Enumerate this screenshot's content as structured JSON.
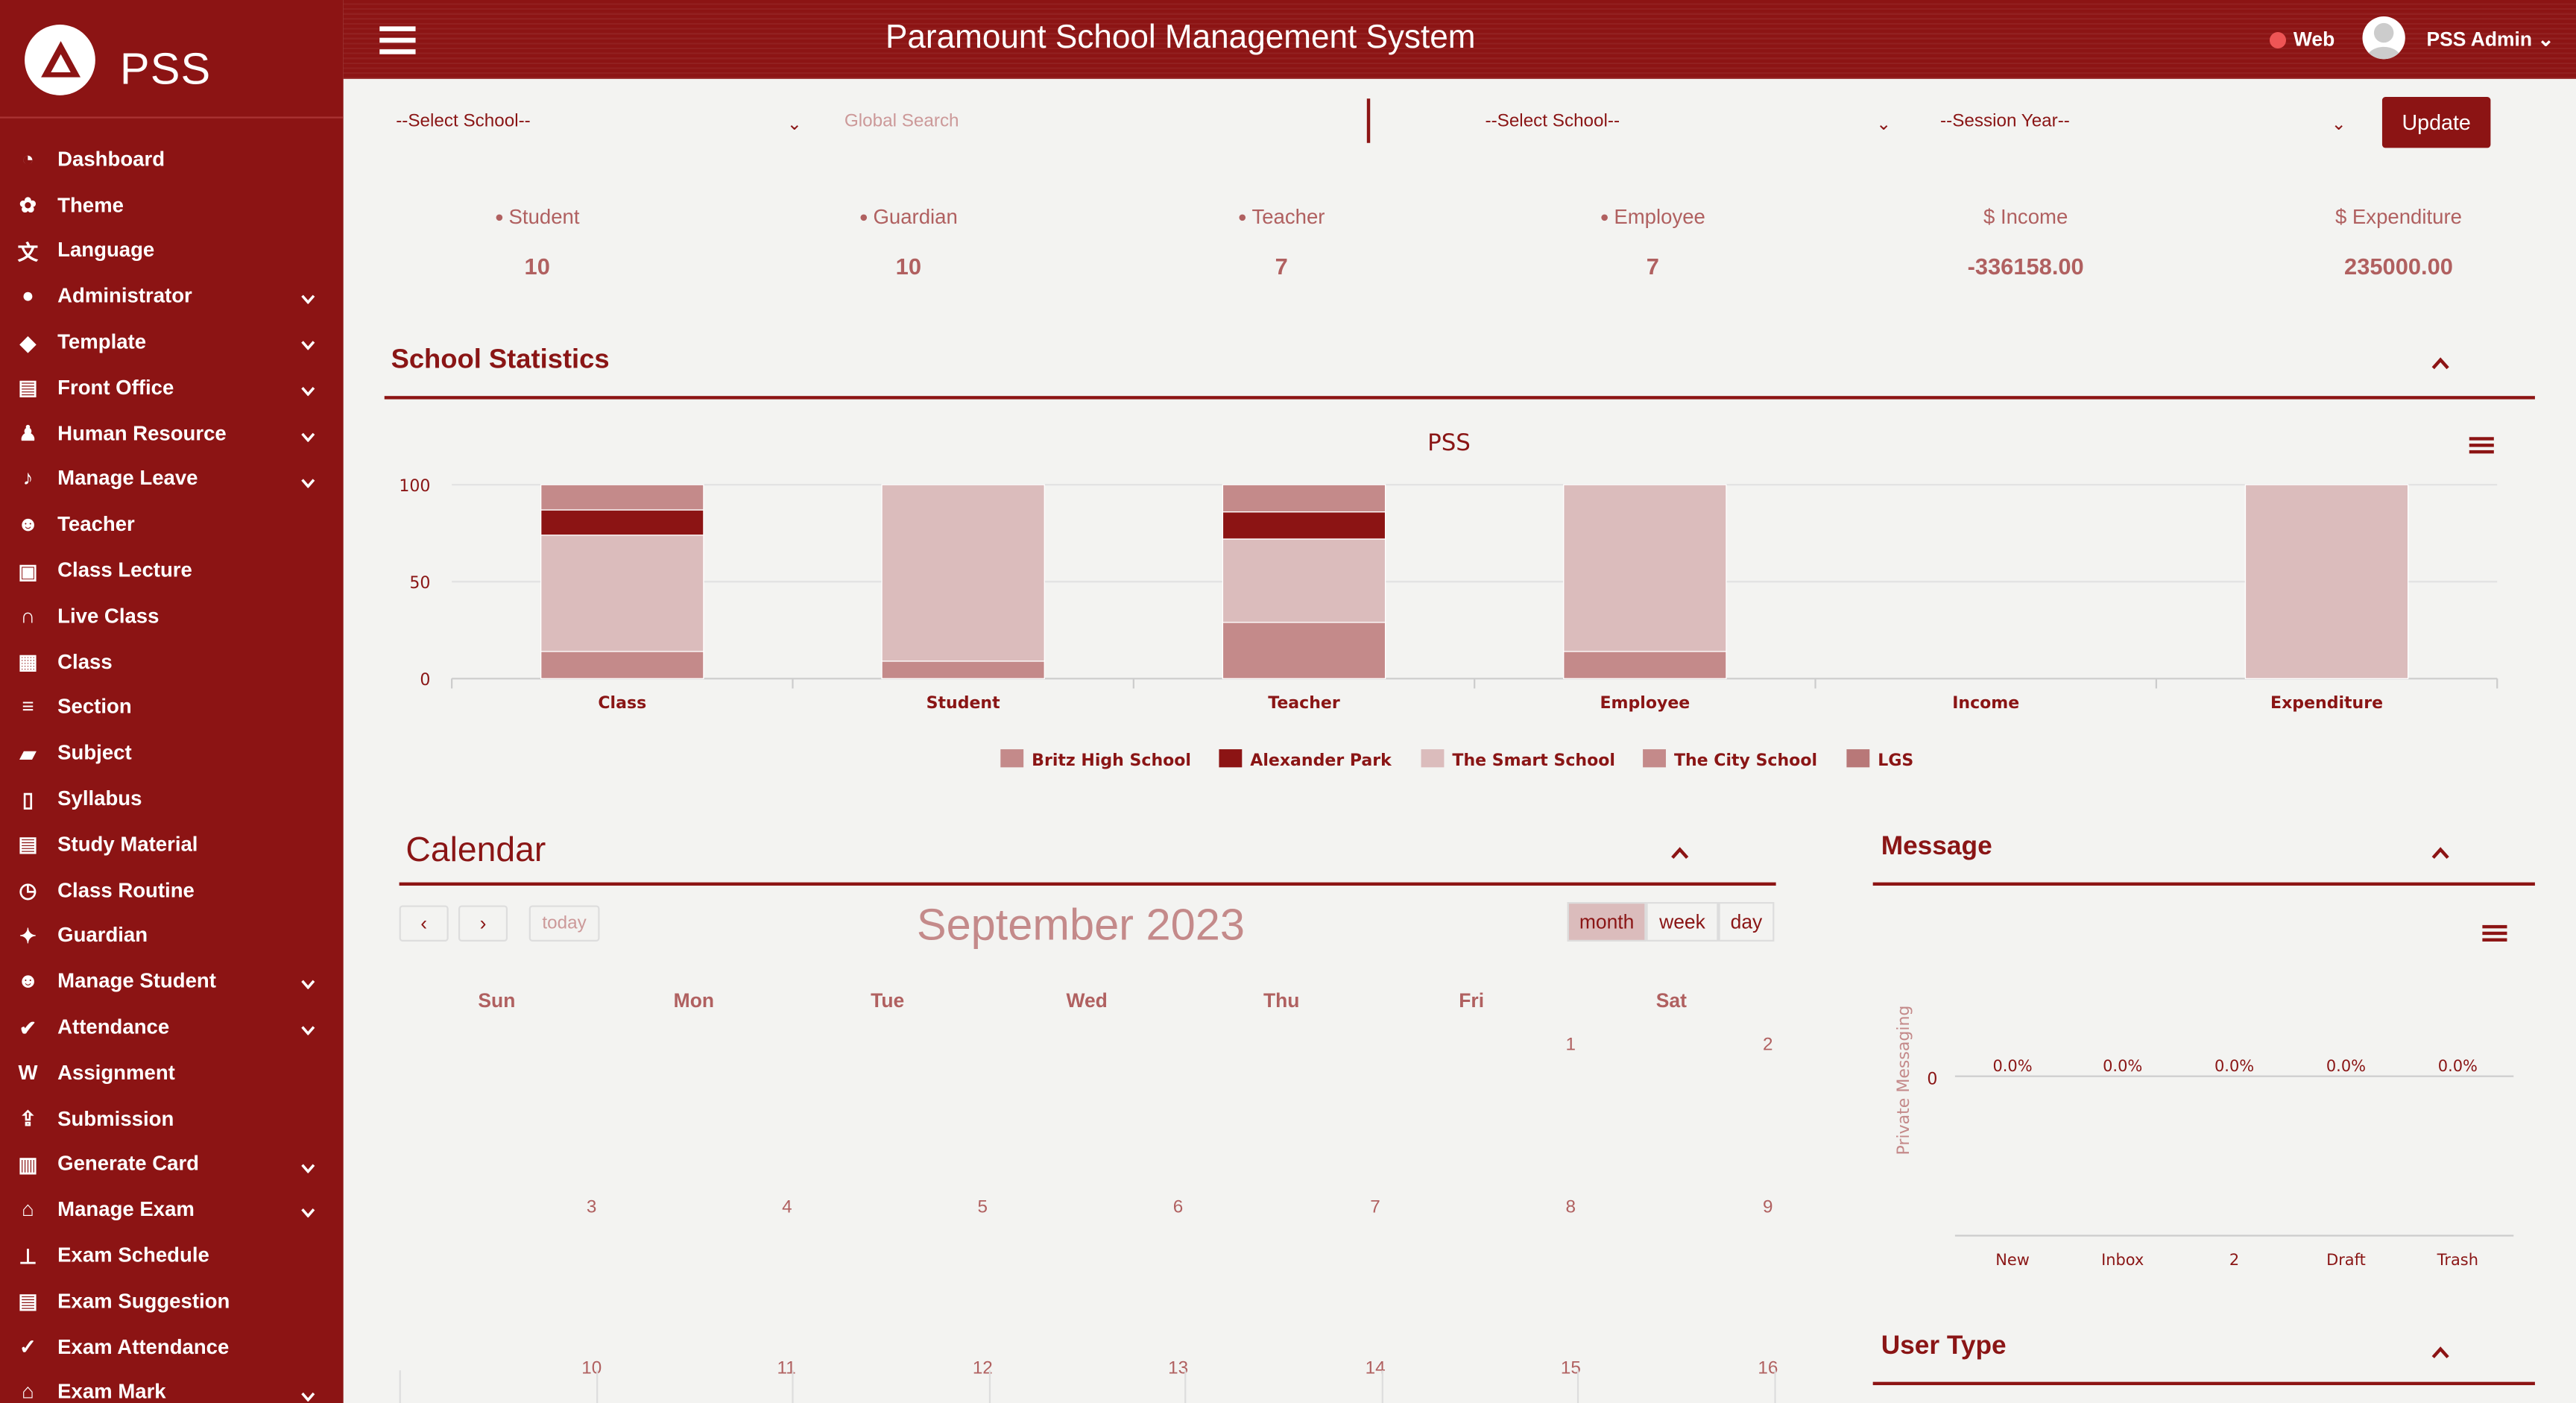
{
  "brand": "PSS",
  "header": {
    "title": "Paramount School Management System",
    "web": "Web",
    "user": "PSS Admin"
  },
  "sidebar": {
    "items": [
      {
        "label": "Dashboard",
        "icon": "dashboard-icon",
        "chev": false
      },
      {
        "label": "Theme",
        "icon": "palette-icon",
        "chev": false
      },
      {
        "label": "Language",
        "icon": "language-icon",
        "chev": false
      },
      {
        "label": "Administrator",
        "icon": "user-icon",
        "chev": true
      },
      {
        "label": "Template",
        "icon": "tags-icon",
        "chev": true
      },
      {
        "label": "Front Office",
        "icon": "fax-icon",
        "chev": true
      },
      {
        "label": "Human Resource",
        "icon": "user-tie-icon",
        "chev": true
      },
      {
        "label": "Manage Leave",
        "icon": "bell-icon",
        "chev": true
      },
      {
        "label": "Teacher",
        "icon": "users-icon",
        "chev": false
      },
      {
        "label": "Class Lecture",
        "icon": "video-file-icon",
        "chev": false
      },
      {
        "label": "Live Class",
        "icon": "headset-icon",
        "chev": false
      },
      {
        "label": "Class",
        "icon": "chalkboard-icon",
        "chev": false
      },
      {
        "label": "Section",
        "icon": "list-icon",
        "chev": false
      },
      {
        "label": "Subject",
        "icon": "folder-open-icon",
        "chev": false
      },
      {
        "label": "Syllabus",
        "icon": "files-icon",
        "chev": false
      },
      {
        "label": "Study Material",
        "icon": "document-icon",
        "chev": false
      },
      {
        "label": "Class Routine",
        "icon": "clock-icon",
        "chev": false
      },
      {
        "label": "Guardian",
        "icon": "paw-icon",
        "chev": false
      },
      {
        "label": "Manage Student",
        "icon": "users-icon",
        "chev": true
      },
      {
        "label": "Attendance",
        "icon": "check-circle-icon",
        "chev": true
      },
      {
        "label": "Assignment",
        "icon": "word-file-icon",
        "chev": false
      },
      {
        "label": "Submission",
        "icon": "upload-icon",
        "chev": false
      },
      {
        "label": "Generate Card",
        "icon": "barcode-icon",
        "chev": true
      },
      {
        "label": "Manage Exam",
        "icon": "graduation-cap-icon",
        "chev": true
      },
      {
        "label": "Exam Schedule",
        "icon": "pin-icon",
        "chev": false
      },
      {
        "label": "Exam Suggestion",
        "icon": "document-icon",
        "chev": false
      },
      {
        "label": "Exam Attendance",
        "icon": "check-icon",
        "chev": false
      },
      {
        "label": "Exam Mark",
        "icon": "graduation-cap-icon",
        "chev": true
      }
    ]
  },
  "filters": {
    "school1": "--Select School--",
    "search": "Global Search",
    "school2": "--Select School--",
    "session": "--Session Year--",
    "update": "Update"
  },
  "stats": [
    {
      "label": "Student",
      "value": "10"
    },
    {
      "label": "Guardian",
      "value": "10"
    },
    {
      "label": "Teacher",
      "value": "7"
    },
    {
      "label": "Employee",
      "value": "7"
    },
    {
      "label": "$ Income",
      "value": "-336158.00"
    },
    {
      "label": "$ Expenditure",
      "value": "235000.00"
    }
  ],
  "school_statistics": {
    "title": "School Statistics"
  },
  "chart_data": {
    "type": "bar",
    "stacked": true,
    "percent": true,
    "title": "PSS",
    "categories": [
      "Class",
      "Student",
      "Teacher",
      "Employee",
      "Income",
      "Expenditure"
    ],
    "ylim": [
      0,
      100
    ],
    "yticks": [
      "0",
      "50",
      "100"
    ],
    "series": [
      {
        "name": "Britz High School",
        "color": "#c48a8a",
        "values": [
          13,
          0,
          14,
          0,
          0,
          0
        ]
      },
      {
        "name": "Alexander Park",
        "color": "#8c1414",
        "values": [
          13,
          0,
          14,
          0,
          0,
          0
        ]
      },
      {
        "name": "The Smart School",
        "color": "#dbbcbc",
        "values": [
          60,
          91,
          43,
          86,
          0,
          100
        ]
      },
      {
        "name": "The City School",
        "color": "#c48a8a",
        "values": [
          14,
          9,
          29,
          14,
          0,
          0
        ]
      },
      {
        "name": "LGS",
        "color": "#b87878",
        "values": [
          0,
          0,
          0,
          0,
          0,
          0
        ]
      }
    ]
  },
  "calendar": {
    "title": "Calendar",
    "today": "today",
    "month_title": "September 2023",
    "views": [
      "month",
      "week",
      "day"
    ],
    "dow": [
      "Sun",
      "Mon",
      "Tue",
      "Wed",
      "Thu",
      "Fri",
      "Sat"
    ],
    "weeks": [
      [
        "",
        "",
        "",
        "",
        "",
        "1",
        "2"
      ],
      [
        "3",
        "4",
        "5",
        "6",
        "7",
        "8",
        "9"
      ],
      [
        "10",
        "11",
        "12",
        "13",
        "14",
        "15",
        "16"
      ]
    ]
  },
  "message": {
    "title": "Message",
    "ylabel": "Private Messaging",
    "ytick": "0",
    "categories": [
      "New",
      "Inbox",
      "2",
      "Draft",
      "Trash"
    ],
    "values": [
      "0.0%",
      "0.0%",
      "0.0%",
      "0.0%",
      "0.0%"
    ]
  },
  "user_type": {
    "title": "User Type"
  }
}
